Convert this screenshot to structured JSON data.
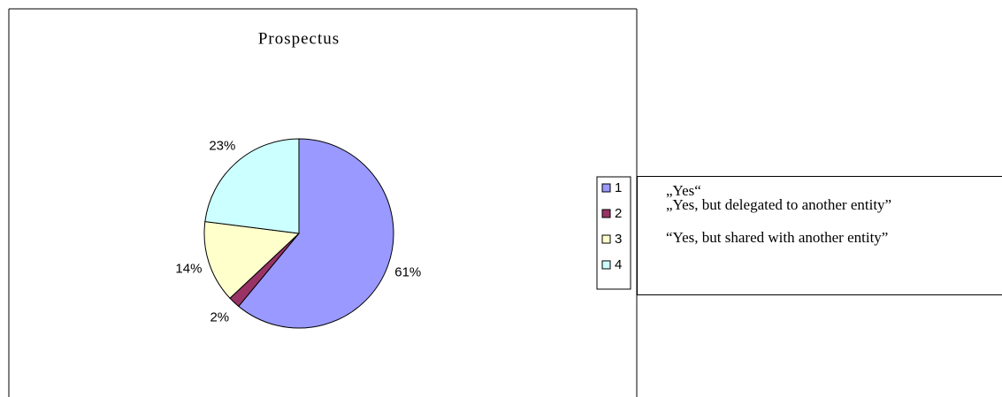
{
  "chart_data": {
    "type": "pie",
    "title": "Prospectus",
    "categories": [
      "1",
      "2",
      "3",
      "4"
    ],
    "values": [
      61,
      2,
      14,
      23
    ],
    "value_labels": [
      "61%",
      "2%",
      "14%",
      "23%"
    ],
    "colors": [
      "#9999ff",
      "#993366",
      "#ffffcc",
      "#ccffff"
    ],
    "legend": "right"
  },
  "notes": [
    "„Yes“",
    "„Yes, but delegated to another entity”",
    "“Yes, but shared with another entity”"
  ]
}
